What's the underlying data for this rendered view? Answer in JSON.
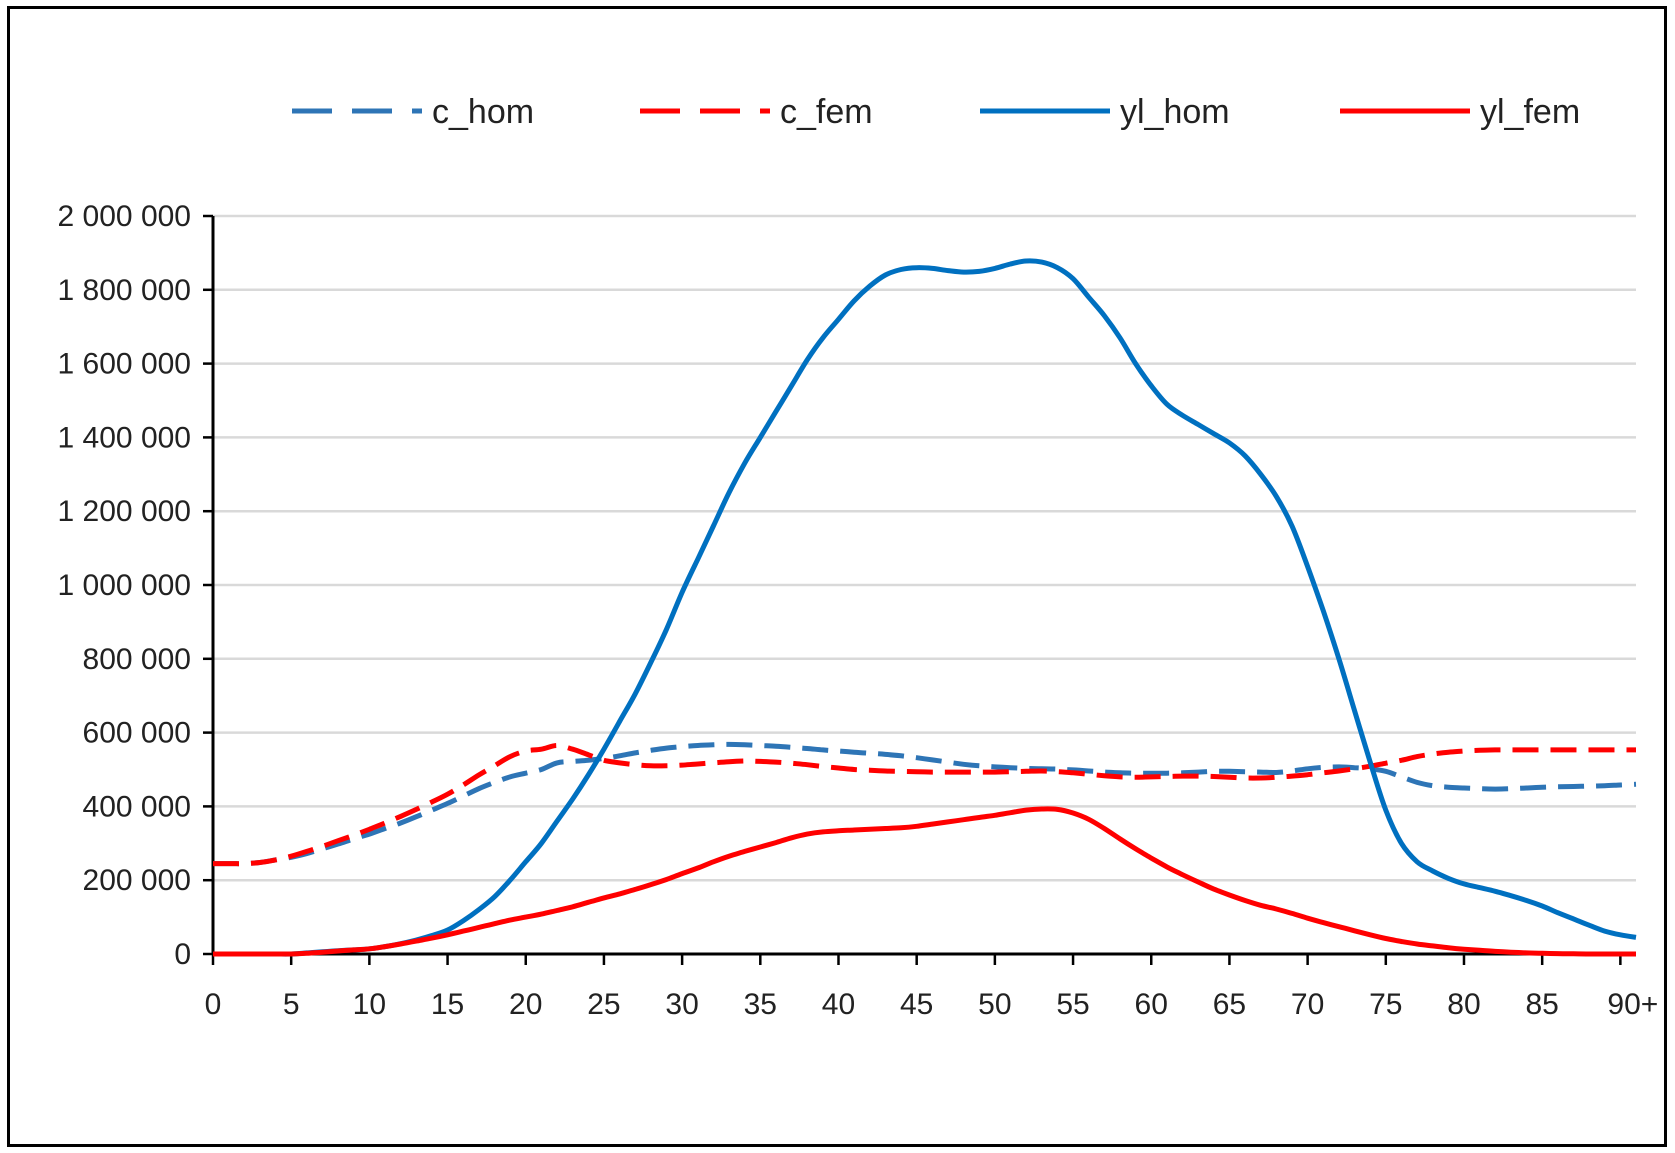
{
  "chart_data": {
    "type": "line",
    "title": "",
    "xlabel": "",
    "ylabel": "",
    "x": [
      0,
      1,
      2,
      3,
      4,
      5,
      6,
      7,
      8,
      9,
      10,
      11,
      12,
      13,
      14,
      15,
      16,
      17,
      18,
      19,
      20,
      21,
      22,
      23,
      24,
      25,
      26,
      27,
      28,
      29,
      30,
      31,
      32,
      33,
      34,
      35,
      36,
      37,
      38,
      39,
      40,
      41,
      42,
      43,
      44,
      45,
      46,
      47,
      48,
      49,
      50,
      51,
      52,
      53,
      54,
      55,
      56,
      57,
      58,
      59,
      60,
      61,
      62,
      63,
      64,
      65,
      66,
      67,
      68,
      69,
      70,
      71,
      72,
      73,
      74,
      75,
      76,
      77,
      78,
      79,
      80,
      81,
      82,
      83,
      84,
      85,
      86,
      87,
      88,
      89,
      90,
      91
    ],
    "xlim": [
      0,
      91
    ],
    "ylim": [
      0,
      2000000
    ],
    "x_ticks": [
      0,
      5,
      10,
      15,
      20,
      25,
      30,
      35,
      40,
      45,
      50,
      55,
      60,
      65,
      70,
      75,
      80,
      85,
      90.8
    ],
    "x_tick_labels": [
      "0",
      "5",
      "10",
      "15",
      "20",
      "25",
      "30",
      "35",
      "40",
      "45",
      "50",
      "55",
      "60",
      "65",
      "70",
      "75",
      "80",
      "85",
      "90+"
    ],
    "y_ticks": [
      0,
      200000,
      400000,
      600000,
      800000,
      1000000,
      1200000,
      1400000,
      1600000,
      1800000,
      2000000
    ],
    "y_tick_labels": [
      "0",
      "200 000",
      "400 000",
      "600 000",
      "800 000",
      "1 000 000",
      "1 200 000",
      "1 400 000",
      "1 600 000",
      "1 800 000",
      "2 000 000"
    ],
    "grid": true,
    "legend_position": "top",
    "series": [
      {
        "name": "c_hom",
        "color": "#2e75b6",
        "dash": true,
        "values": [
          245000,
          245000,
          245000,
          248000,
          255000,
          262000,
          272000,
          285000,
          298000,
          312000,
          325000,
          340000,
          355000,
          372000,
          390000,
          408000,
          428000,
          448000,
          465000,
          480000,
          490000,
          500000,
          518000,
          522000,
          525000,
          530000,
          537000,
          545000,
          552000,
          558000,
          562000,
          565000,
          567000,
          568000,
          567000,
          565000,
          563000,
          560000,
          557000,
          553000,
          550000,
          547000,
          544000,
          541000,
          537000,
          532000,
          526000,
          520000,
          514000,
          510000,
          507000,
          505000,
          503000,
          502000,
          501000,
          499000,
          496000,
          493000,
          491000,
          490000,
          490000,
          490000,
          491000,
          493000,
          495000,
          495000,
          494000,
          493000,
          492000,
          496000,
          502000,
          506000,
          507000,
          505000,
          502000,
          495000,
          480000,
          465000,
          456000,
          452000,
          450000,
          448000,
          447000,
          448000,
          450000,
          452000,
          453000,
          454000,
          455000,
          456000,
          458000,
          460000
        ]
      },
      {
        "name": "c_fem",
        "color": "#ff0000",
        "dash": true,
        "values": [
          245000,
          245000,
          245000,
          248000,
          255000,
          265000,
          278000,
          292000,
          307000,
          322000,
          338000,
          355000,
          373000,
          392000,
          412000,
          433000,
          458000,
          485000,
          510000,
          535000,
          550000,
          555000,
          565000,
          555000,
          540000,
          525000,
          518000,
          513000,
          510000,
          510000,
          512000,
          515000,
          518000,
          521000,
          523000,
          522000,
          520000,
          517000,
          513000,
          508000,
          504000,
          500000,
          498000,
          496000,
          495000,
          494000,
          493000,
          493000,
          493000,
          493000,
          493000,
          494000,
          495000,
          496000,
          494000,
          491000,
          487000,
          483000,
          480000,
          479000,
          480000,
          481000,
          482000,
          482000,
          481000,
          479000,
          477000,
          477000,
          479000,
          482000,
          486000,
          491000,
          496000,
          502000,
          509000,
          517000,
          525000,
          535000,
          542000,
          547000,
          550000,
          552000,
          553000,
          553000,
          553000,
          553000,
          553000,
          553000,
          553000,
          553000,
          553000,
          553000
        ]
      },
      {
        "name": "yl_hom",
        "color": "#0070c0",
        "dash": false,
        "values": [
          0,
          0,
          0,
          0,
          0,
          0,
          3000,
          6000,
          9000,
          11000,
          14000,
          20000,
          28000,
          38000,
          50000,
          65000,
          90000,
          120000,
          155000,
          200000,
          250000,
          300000,
          360000,
          420000,
          485000,
          555000,
          630000,
          705000,
          790000,
          880000,
          980000,
          1070000,
          1160000,
          1250000,
          1330000,
          1400000,
          1470000,
          1540000,
          1610000,
          1670000,
          1720000,
          1770000,
          1810000,
          1840000,
          1855000,
          1860000,
          1858000,
          1852000,
          1848000,
          1850000,
          1858000,
          1870000,
          1878000,
          1875000,
          1860000,
          1830000,
          1780000,
          1730000,
          1670000,
          1600000,
          1540000,
          1490000,
          1460000,
          1435000,
          1410000,
          1385000,
          1350000,
          1300000,
          1240000,
          1160000,
          1050000,
          930000,
          800000,
          660000,
          520000,
          390000,
          300000,
          250000,
          225000,
          205000,
          190000,
          180000,
          170000,
          158000,
          145000,
          130000,
          112000,
          95000,
          78000,
          62000,
          52000,
          45000
        ]
      },
      {
        "name": "yl_fem",
        "color": "#ff0000",
        "dash": false,
        "values": [
          0,
          0,
          0,
          0,
          0,
          0,
          2000,
          5000,
          8000,
          11000,
          14000,
          20000,
          27000,
          35000,
          43000,
          52000,
          62000,
          72000,
          82000,
          92000,
          100000,
          108000,
          118000,
          128000,
          140000,
          152000,
          163000,
          175000,
          188000,
          202000,
          218000,
          233000,
          250000,
          265000,
          278000,
          290000,
          302000,
          315000,
          325000,
          331000,
          334000,
          336000,
          338000,
          340000,
          342000,
          346000,
          352000,
          358000,
          364000,
          370000,
          376000,
          383000,
          390000,
          393000,
          392000,
          382000,
          365000,
          340000,
          312000,
          285000,
          260000,
          236000,
          215000,
          195000,
          176000,
          160000,
          145000,
          132000,
          122000,
          110000,
          97000,
          85000,
          74000,
          63000,
          52000,
          42000,
          34000,
          27000,
          22000,
          17000,
          13000,
          10000,
          7000,
          5000,
          3000,
          2000,
          1000,
          500,
          0,
          0,
          0,
          0
        ]
      }
    ]
  }
}
